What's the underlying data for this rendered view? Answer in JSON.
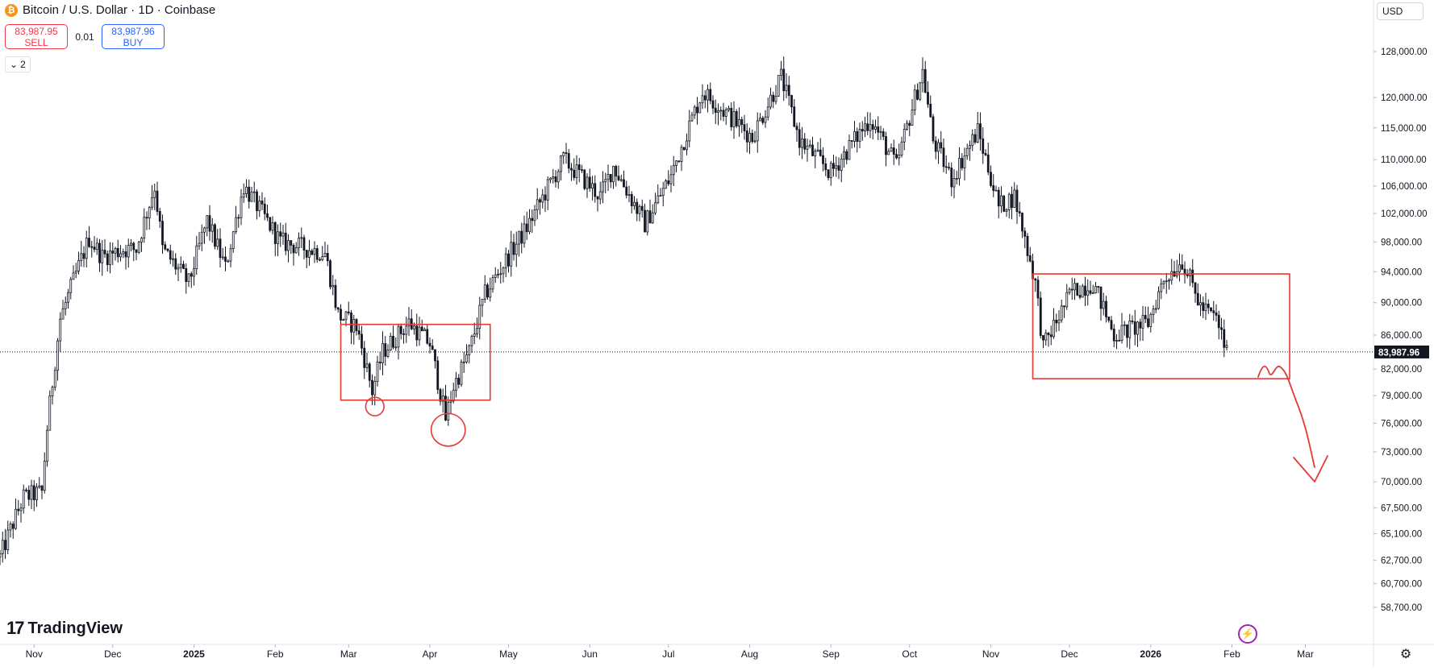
{
  "header": {
    "symbol_title": "Bitcoin / U.S. Dollar · 1D · Coinbase",
    "symbol_icon": "bitcoin-icon",
    "sell": {
      "price": "83,987.95",
      "label": "SELL",
      "color": "#f23645"
    },
    "spread": "0.01",
    "buy": {
      "price": "83,987.96",
      "label": "BUY",
      "color": "#2962ff"
    },
    "indicators_count": "2",
    "currency": "USD"
  },
  "footer": {
    "logo_text": "TradingView",
    "settings_icon": "gear-icon",
    "assistant_icon": "lightning-icon"
  },
  "chart_data": {
    "type": "candlestick",
    "last_price": 83987.96,
    "last_price_label": "83,987.96",
    "y_scale": "log",
    "y_ticks": [
      {
        "label": "128,000.00",
        "value": 128000
      },
      {
        "label": "120,000.00",
        "value": 120000
      },
      {
        "label": "115,000.00",
        "value": 115000
      },
      {
        "label": "110,000.00",
        "value": 110000
      },
      {
        "label": "106,000.00",
        "value": 106000
      },
      {
        "label": "102,000.00",
        "value": 102000
      },
      {
        "label": "98,000.00",
        "value": 98000
      },
      {
        "label": "94,000.00",
        "value": 94000
      },
      {
        "label": "90,000.00",
        "value": 90000
      },
      {
        "label": "86,000.00",
        "value": 86000
      },
      {
        "label": "82,000.00",
        "value": 82000
      },
      {
        "label": "79,000.00",
        "value": 79000
      },
      {
        "label": "76,000.00",
        "value": 76000
      },
      {
        "label": "73,000.00",
        "value": 73000
      },
      {
        "label": "70,000.00",
        "value": 70000
      },
      {
        "label": "67,500.00",
        "value": 67500
      },
      {
        "label": "65,100.00",
        "value": 65100
      },
      {
        "label": "62,700.00",
        "value": 62700
      },
      {
        "label": "60,700.00",
        "value": 60700
      },
      {
        "label": "58,700.00",
        "value": 58700
      }
    ],
    "x_ticks": [
      {
        "label": "Nov",
        "date": "2024-11-01",
        "bold": false
      },
      {
        "label": "Dec",
        "date": "2024-12-01",
        "bold": false
      },
      {
        "label": "2025",
        "date": "2025-01-01",
        "bold": true
      },
      {
        "label": "Feb",
        "date": "2025-02-01",
        "bold": false
      },
      {
        "label": "Mar",
        "date": "2025-03-01",
        "bold": false
      },
      {
        "label": "Apr",
        "date": "2025-04-01",
        "bold": false
      },
      {
        "label": "May",
        "date": "2025-05-01",
        "bold": false
      },
      {
        "label": "Jun",
        "date": "2025-06-01",
        "bold": false
      },
      {
        "label": "Jul",
        "date": "2025-07-01",
        "bold": false
      },
      {
        "label": "Aug",
        "date": "2025-08-01",
        "bold": false
      },
      {
        "label": "Sep",
        "date": "2025-09-01",
        "bold": false
      },
      {
        "label": "Oct",
        "date": "2025-10-01",
        "bold": false
      },
      {
        "label": "Nov",
        "date": "2025-11-01",
        "bold": false
      },
      {
        "label": "Dec",
        "date": "2025-12-01",
        "bold": false
      },
      {
        "label": "2026",
        "date": "2026-01-01",
        "bold": true
      },
      {
        "label": "Feb",
        "date": "2026-02-01",
        "bold": false
      },
      {
        "label": "Mar",
        "date": "2026-03-01",
        "bold": false
      }
    ],
    "x_range": [
      "2024-10-19",
      "2026-03-27"
    ],
    "close_anchors": [
      [
        "2024-10-19",
        63000
      ],
      [
        "2024-10-28",
        68500
      ],
      [
        "2024-11-04",
        69000
      ],
      [
        "2024-11-06",
        75500
      ],
      [
        "2024-11-11",
        88000
      ],
      [
        "2024-11-22",
        98500
      ],
      [
        "2024-11-27",
        96000
      ],
      [
        "2024-12-05",
        97000
      ],
      [
        "2024-12-10",
        97000
      ],
      [
        "2024-12-17",
        106000
      ],
      [
        "2024-12-20",
        97000
      ],
      [
        "2024-12-30",
        92500
      ],
      [
        "2025-01-06",
        101000
      ],
      [
        "2025-01-13",
        94500
      ],
      [
        "2025-01-20",
        106000
      ],
      [
        "2025-01-27",
        102000
      ],
      [
        "2025-02-03",
        98000
      ],
      [
        "2025-02-20",
        96500
      ],
      [
        "2025-02-25",
        88500
      ],
      [
        "2025-03-04",
        87000
      ],
      [
        "2025-03-10",
        79500
      ],
      [
        "2025-03-14",
        84000
      ],
      [
        "2025-03-24",
        87500
      ],
      [
        "2025-04-01",
        85000
      ],
      [
        "2025-04-07",
        76500
      ],
      [
        "2025-04-10",
        80000
      ],
      [
        "2025-04-16",
        84000
      ],
      [
        "2025-04-22",
        91000
      ],
      [
        "2025-05-08",
        100000
      ],
      [
        "2025-05-22",
        110000
      ],
      [
        "2025-06-05",
        104500
      ],
      [
        "2025-06-10",
        109000
      ],
      [
        "2025-06-22",
        100500
      ],
      [
        "2025-07-02",
        107500
      ],
      [
        "2025-07-10",
        116500
      ],
      [
        "2025-07-14",
        121000
      ],
      [
        "2025-08-02",
        113500
      ],
      [
        "2025-08-13",
        123500
      ],
      [
        "2025-08-20",
        113000
      ],
      [
        "2025-09-01",
        108000
      ],
      [
        "2025-09-16",
        116500
      ],
      [
        "2025-09-26",
        109000
      ],
      [
        "2025-10-06",
        124500
      ],
      [
        "2025-10-10",
        113000
      ],
      [
        "2025-10-17",
        107000
      ],
      [
        "2025-10-27",
        114500
      ],
      [
        "2025-11-04",
        103000
      ],
      [
        "2025-11-10",
        104500
      ],
      [
        "2025-11-18",
        92500
      ],
      [
        "2025-11-21",
        84500
      ],
      [
        "2025-12-02",
        91500
      ],
      [
        "2025-12-10",
        92500
      ],
      [
        "2025-12-18",
        86000
      ],
      [
        "2025-12-31",
        87500
      ],
      [
        "2026-01-06",
        93000
      ],
      [
        "2026-01-13",
        95500
      ],
      [
        "2026-01-20",
        89500
      ],
      [
        "2026-01-26",
        88000
      ],
      [
        "2026-01-30",
        84000
      ]
    ],
    "annotations": {
      "rectangles": [
        {
          "from": "2025-02-26",
          "to": "2025-04-24",
          "top": 87300,
          "bottom": 78500
        },
        {
          "from": "2025-11-17",
          "to": "2026-02-23",
          "top": 93700,
          "bottom": 80900
        }
      ],
      "ellipses": [
        {
          "date": "2025-03-11",
          "price": 77800,
          "rx_days": 3.5,
          "ry_price": 1000
        },
        {
          "date": "2025-04-08",
          "price": 75300,
          "rx_days": 6.5,
          "ry_price": 1700
        }
      ],
      "color": "#e53935"
    }
  }
}
